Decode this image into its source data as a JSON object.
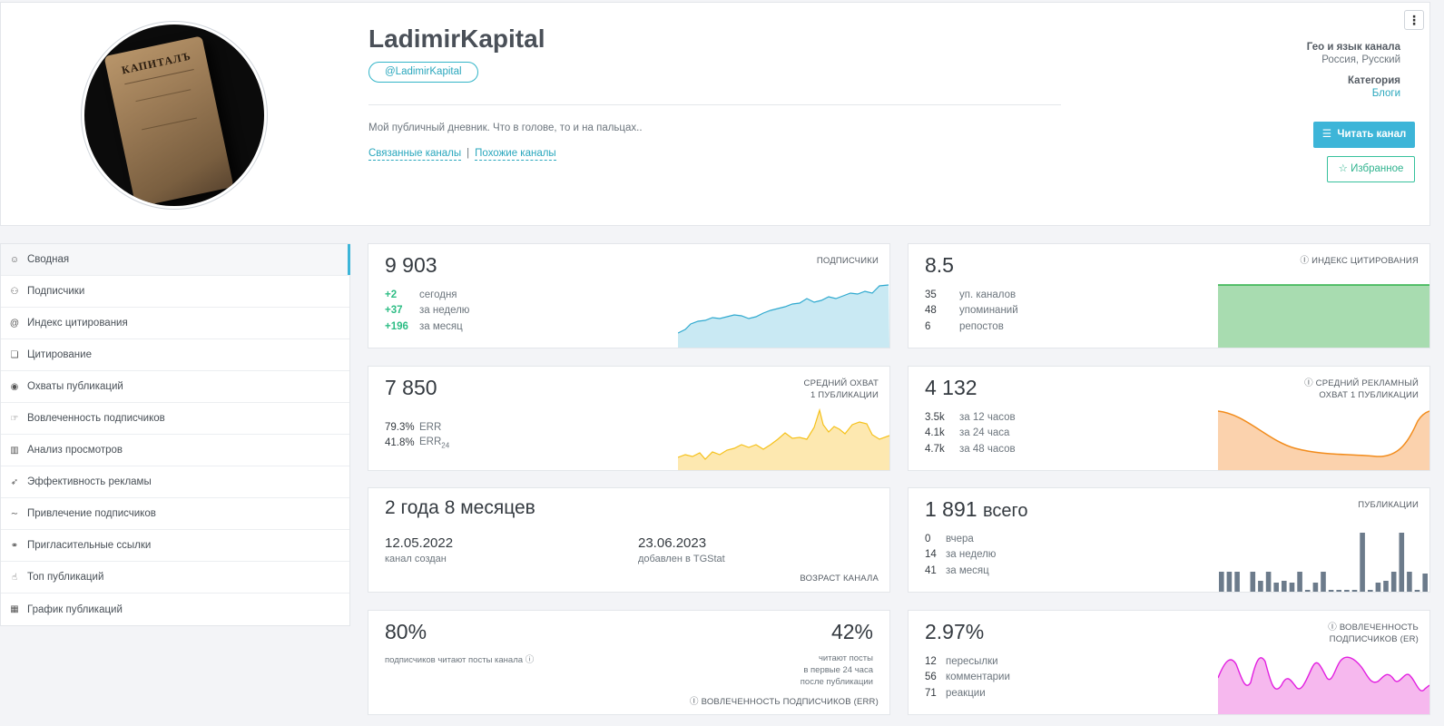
{
  "channel": {
    "title": "LadimirKapital",
    "handle": "@LadimirKapital",
    "description": "Мой публичный дневник. Что в голове, то и на пальцах..",
    "link_related": "Связанные каналы",
    "link_similar": "Похожие каналы",
    "book_title": "КАПИТАЛЪ",
    "geo_label": "Гео и язык канала",
    "geo_value": "Россия, Русский",
    "category_label": "Категория",
    "category_value": "Блоги",
    "read_button": "Читать канал",
    "fav_button": "Избранное",
    "menu_icon": "⋮"
  },
  "sidebar": {
    "items": [
      {
        "label": "Сводная",
        "icon": "☺"
      },
      {
        "label": "Подписчики",
        "icon": "⚇"
      },
      {
        "label": "Индекс цитирования",
        "icon": "@"
      },
      {
        "label": "Цитирование",
        "icon": "❏"
      },
      {
        "label": "Охваты публикаций",
        "icon": "◉"
      },
      {
        "label": "Вовлеченность подписчиков",
        "icon": "☞"
      },
      {
        "label": "Анализ просмотров",
        "icon": "▥"
      },
      {
        "label": "Эффективность рекламы",
        "icon": "➶"
      },
      {
        "label": "Привлечение подписчиков",
        "icon": "∼"
      },
      {
        "label": "Пригласительные ссылки",
        "icon": "⚭"
      },
      {
        "label": "Топ публикаций",
        "icon": "☝"
      },
      {
        "label": "График публикаций",
        "icon": "▦"
      }
    ]
  },
  "cards": {
    "subscribers": {
      "value": "9 903",
      "label": "ПОДПИСЧИКИ",
      "rows": [
        {
          "v": "+2",
          "l": "сегодня"
        },
        {
          "v": "+37",
          "l": "за неделю"
        },
        {
          "v": "+196",
          "l": "за месяц"
        }
      ]
    },
    "citation": {
      "value": "8.5",
      "label": "ИНДЕКС ЦИТИРОВАНИЯ",
      "rows": [
        {
          "v": "35",
          "l": "уп. каналов"
        },
        {
          "v": "48",
          "l": "упоминаний"
        },
        {
          "v": "6",
          "l": "репостов"
        }
      ]
    },
    "reach": {
      "value": "7 850",
      "label1": "СРЕДНИЙ ОХВАТ",
      "label2": "1 ПУБЛИКАЦИИ",
      "rows": [
        {
          "v": "79.3%",
          "l": "ERR"
        },
        {
          "v": "41.8%",
          "l": "ERR",
          "sub": "24"
        }
      ]
    },
    "ad_reach": {
      "value": "4 132",
      "label1": "СРЕДНИЙ РЕКЛАМНЫЙ",
      "label2": "ОХВАТ 1 ПУБЛИКАЦИИ",
      "rows": [
        {
          "v": "3.5k",
          "l": "за 12 часов"
        },
        {
          "v": "4.1k",
          "l": "за 24 часа"
        },
        {
          "v": "4.7k",
          "l": "за 48 часов"
        }
      ]
    },
    "age": {
      "value": "2 года 8 месяцев",
      "created_date": "12.05.2022",
      "created_label": "канал создан",
      "added_date": "23.06.2023",
      "added_label": "добавлен в TGStat",
      "label": "ВОЗРАСТ КАНАЛА"
    },
    "posts": {
      "value": "1 891",
      "unit": "всего",
      "label": "ПУБЛИКАЦИИ",
      "rows": [
        {
          "v": "0",
          "l": "вчера"
        },
        {
          "v": "14",
          "l": "за неделю"
        },
        {
          "v": "41",
          "l": "за месяц"
        }
      ]
    },
    "err": {
      "value_left": "80%",
      "sub_left": "подписчиков читают посты канала",
      "value_right": "42%",
      "sub_right1": "читают посты",
      "sub_right2": "в первые 24 часа",
      "sub_right3": "после публикации",
      "label": "ВОВЛЕЧЕННОСТЬ ПОДПИСЧИКОВ (ERR)"
    },
    "er": {
      "value": "2.97%",
      "label1": "ВОВЛЕЧЕННОСТЬ",
      "label2": "ПОДПИСЧИКОВ (ER)",
      "rows": [
        {
          "v": "12",
          "l": "пересылки"
        },
        {
          "v": "56",
          "l": "комментарии"
        },
        {
          "v": "71",
          "l": "реакции"
        }
      ]
    }
  },
  "colors": {
    "accent": "#3db5d8",
    "subs_fill": "#c9e9f3",
    "subs_line": "#2fa9cf",
    "cit_fill": "#a8dcb0",
    "cit_line": "#2db049",
    "reach_fill": "#fde8b0",
    "reach_line": "#f5c11a",
    "ad_fill": "#fbd2ad",
    "ad_line": "#f28c1c",
    "posts_bar": "#6c7b8b",
    "er_fill": "#f6b8ee",
    "er_line": "#e21ee0"
  }
}
